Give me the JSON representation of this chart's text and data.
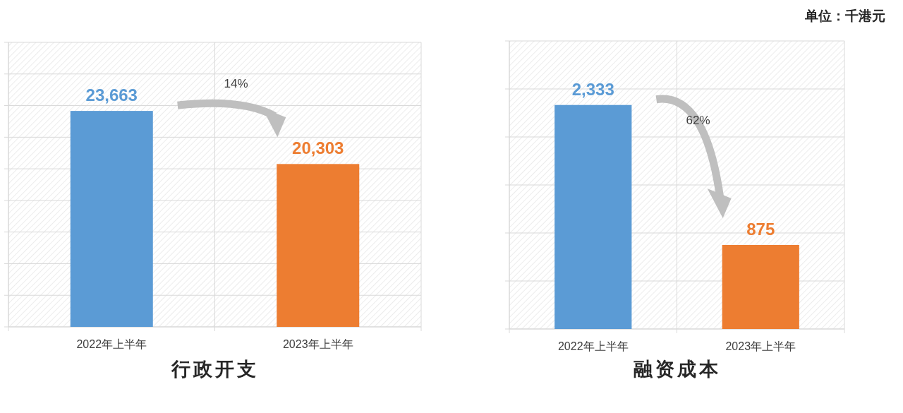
{
  "chart_data": [
    {
      "type": "bar",
      "title": "行政开支",
      "categories": [
        "2022年上半年",
        "2023年上半年"
      ],
      "values": [
        23663,
        20303
      ],
      "value_labels": [
        "23,663",
        "20,303"
      ],
      "colors": [
        "#5b9bd5",
        "#ed7d31"
      ],
      "ylim": [
        10000,
        28000
      ],
      "yticks": [
        {
          "value": 10000,
          "label": null
        },
        {
          "value": 12000,
          "label": null
        },
        {
          "value": 14000,
          "label": null
        },
        {
          "value": 16000,
          "label": null
        },
        {
          "value": 18000,
          "label": null
        },
        {
          "value": 20000,
          "label": null
        },
        {
          "value": 22000,
          "label": null
        },
        {
          "value": 24000,
          "label": null
        },
        {
          "value": 26000,
          "label": null
        },
        {
          "value": 28000,
          "label": null
        }
      ],
      "grid": true,
      "tick_labels": "x",
      "annotations": [
        "14%"
      ]
    },
    {
      "type": "bar",
      "title": "融资成本",
      "categories": [
        "2022年上半年",
        "2023年上半年"
      ],
      "values": [
        2333,
        875
      ],
      "value_labels": [
        "2,333",
        "875"
      ],
      "colors": [
        "#5b9bd5",
        "#ed7d31"
      ],
      "ylim": [
        0,
        3000
      ],
      "yticks": [
        {
          "value": 0,
          "label": null
        },
        {
          "value": 500,
          "label": null
        },
        {
          "value": 1000,
          "label": null
        },
        {
          "value": 1500,
          "label": null
        },
        {
          "value": 2000,
          "label": null
        },
        {
          "value": 2500,
          "label": null
        },
        {
          "value": 3000,
          "label": null
        }
      ],
      "grid": true,
      "tick_labels": "x",
      "annotations": [
        "62%",
        "单位：千港元"
      ]
    }
  ]
}
